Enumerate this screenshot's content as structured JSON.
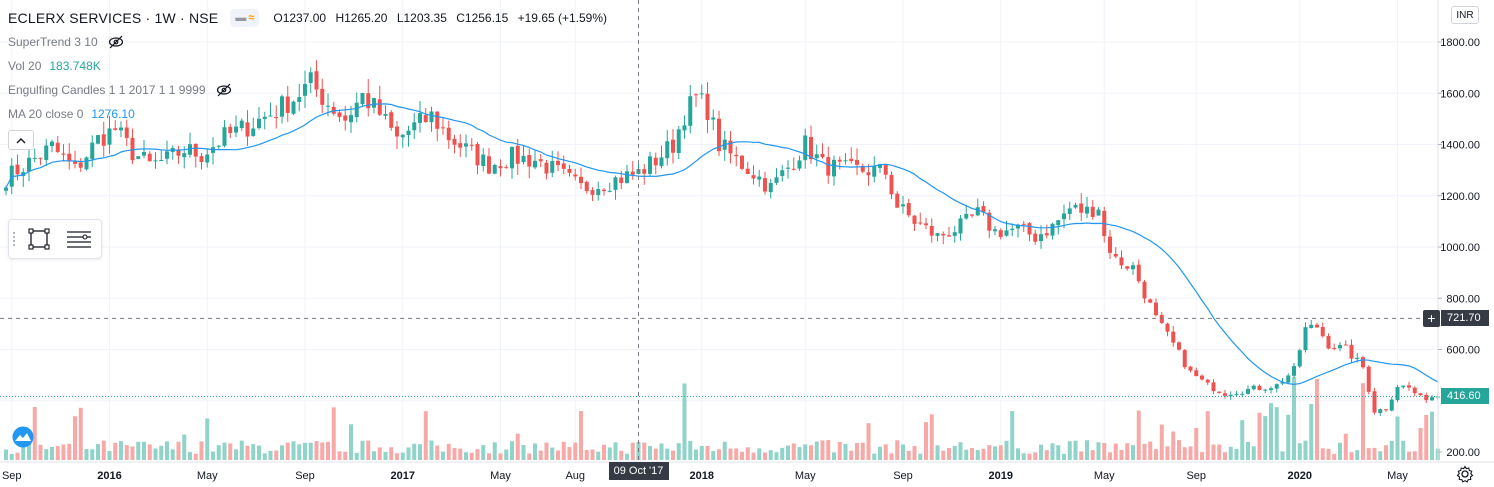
{
  "header": {
    "symbol": "ECLERX SERVICES · 1W · NSE",
    "ohlc": {
      "open": "O1237.00",
      "high": "H1265.20",
      "low": "L1203.35",
      "close": "C1256.15",
      "change": "+19.65 (+1.59%)"
    },
    "currency": "INR"
  },
  "indicators": {
    "supertrend": "SuperTrend 3 10",
    "vol_label": "Vol 20",
    "vol_value": "183.748K",
    "engulfing": "Engulfing Candles 1 1 2017 1 1 9999",
    "ma_label": "MA 20 close 0",
    "ma_value": "1276.10"
  },
  "crosshair": {
    "date_label": "09 Oct '17",
    "price_label": "721.70"
  },
  "last_price_label": "416.60",
  "colors": {
    "up": "#26a69a",
    "down": "#ef5350",
    "ma": "#2196f3",
    "vol_up": "#8fd3c9",
    "vol_down": "#f7a9a7",
    "last_price_tag": "#26a69a",
    "crosshair_tag": "#363a45"
  },
  "chart_data": {
    "type": "candlestick",
    "interval": "1W",
    "y_axis_ticks": [
      200,
      400,
      600,
      800,
      1000,
      1200,
      1400,
      1600,
      1800
    ],
    "y_axis_tick_labels": [
      "200.00",
      "",
      "600.00",
      "800.00",
      "1000.00",
      "1200.00",
      "1400.00",
      "1600.00",
      "1800.00"
    ],
    "ylim": [
      175,
      1875
    ],
    "x_axis_labels": [
      {
        "label": "Sep",
        "week": 1
      },
      {
        "label": "2016",
        "week": 18
      },
      {
        "label": "May",
        "week": 35
      },
      {
        "label": "Sep",
        "week": 52
      },
      {
        "label": "2017",
        "week": 69
      },
      {
        "label": "May",
        "week": 86
      },
      {
        "label": "Aug",
        "week": 99
      },
      {
        "label": "2018",
        "week": 121
      },
      {
        "label": "May",
        "week": 139
      },
      {
        "label": "Sep",
        "week": 156
      },
      {
        "label": "2019",
        "week": 173
      },
      {
        "label": "May",
        "week": 191
      },
      {
        "label": "Sep",
        "week": 207
      },
      {
        "label": "2020",
        "week": 225
      },
      {
        "label": "May",
        "week": 242
      }
    ],
    "price_anchors": [
      [
        0,
        1270
      ],
      [
        4,
        1330
      ],
      [
        8,
        1390
      ],
      [
        12,
        1300
      ],
      [
        16,
        1420
      ],
      [
        19,
        1460
      ],
      [
        22,
        1370
      ],
      [
        25,
        1320
      ],
      [
        28,
        1340
      ],
      [
        31,
        1380
      ],
      [
        34,
        1360
      ],
      [
        38,
        1430
      ],
      [
        42,
        1470
      ],
      [
        46,
        1520
      ],
      [
        50,
        1580
      ],
      [
        53,
        1640
      ],
      [
        56,
        1560
      ],
      [
        59,
        1500
      ],
      [
        62,
        1590
      ],
      [
        65,
        1520
      ],
      [
        68,
        1420
      ],
      [
        71,
        1470
      ],
      [
        74,
        1510
      ],
      [
        77,
        1430
      ],
      [
        80,
        1380
      ],
      [
        84,
        1320
      ],
      [
        88,
        1350
      ],
      [
        92,
        1340
      ],
      [
        96,
        1290
      ],
      [
        100,
        1230
      ],
      [
        104,
        1250
      ],
      [
        107,
        1270
      ],
      [
        110,
        1290
      ],
      [
        113,
        1340
      ],
      [
        116,
        1400
      ],
      [
        118,
        1520
      ],
      [
        120,
        1580
      ],
      [
        122,
        1540
      ],
      [
        124,
        1400
      ],
      [
        127,
        1340
      ],
      [
        130,
        1290
      ],
      [
        133,
        1230
      ],
      [
        136,
        1310
      ],
      [
        139,
        1400
      ],
      [
        142,
        1320
      ],
      [
        146,
        1300
      ],
      [
        150,
        1300
      ],
      [
        153,
        1290
      ],
      [
        155,
        1160
      ],
      [
        158,
        1100
      ],
      [
        162,
        1040
      ],
      [
        166,
        1080
      ],
      [
        169,
        1130
      ],
      [
        172,
        1060
      ],
      [
        176,
        1070
      ],
      [
        179,
        1040
      ],
      [
        182,
        1080
      ],
      [
        185,
        1150
      ],
      [
        188,
        1140
      ],
      [
        190,
        1160
      ],
      [
        191,
        1040
      ],
      [
        193,
        950
      ],
      [
        196,
        920
      ],
      [
        198,
        820
      ],
      [
        200,
        720
      ],
      [
        203,
        620
      ],
      [
        206,
        510
      ],
      [
        209,
        460
      ],
      [
        212,
        430
      ],
      [
        215,
        440
      ],
      [
        218,
        450
      ],
      [
        221,
        460
      ],
      [
        224,
        520
      ],
      [
        226,
        680
      ],
      [
        228,
        690
      ],
      [
        230,
        620
      ],
      [
        233,
        600
      ],
      [
        236,
        530
      ],
      [
        238,
        360
      ],
      [
        240,
        370
      ],
      [
        242,
        460
      ],
      [
        244,
        450
      ],
      [
        246,
        410
      ],
      [
        248,
        416
      ]
    ],
    "last_close": 416.6,
    "crosshair_price": 721.7,
    "crosshair_week": 110
  }
}
